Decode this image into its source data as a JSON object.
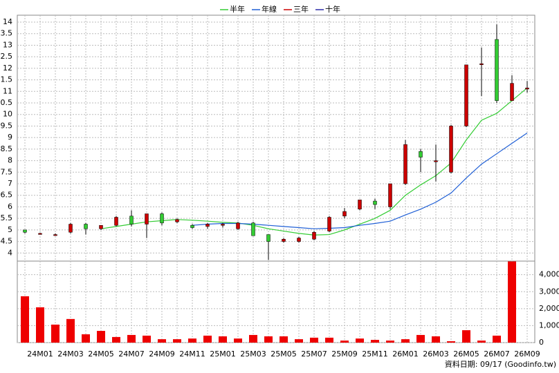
{
  "chart_data": {
    "type": "candlestick",
    "categories": [
      null,
      "24M01",
      null,
      "24M03",
      null,
      "24M05",
      null,
      "24M07",
      null,
      "24M09",
      null,
      "24M11",
      null,
      "25M01",
      null,
      "25M03",
      null,
      "25M05",
      null,
      "25M07",
      null,
      "25M09",
      null,
      "25M11",
      null,
      "26M01",
      null,
      "26M03",
      null,
      "26M05",
      null,
      "26M07",
      null,
      "26M09"
    ],
    "open": [
      5.0,
      4.85,
      4.8,
      4.9,
      5.25,
      5.05,
      5.2,
      5.6,
      5.25,
      5.7,
      5.35,
      5.2,
      5.15,
      5.2,
      5.05,
      5.3,
      4.8,
      4.5,
      4.5,
      4.6,
      4.95,
      5.6,
      5.9,
      6.25,
      6.0,
      7.0,
      8.4,
      7.95,
      7.5,
      9.5,
      12.2,
      13.25,
      10.6,
      11.1
    ],
    "high": [
      5.0,
      4.88,
      4.85,
      5.3,
      5.3,
      5.2,
      5.6,
      5.85,
      5.7,
      5.75,
      5.5,
      5.25,
      5.3,
      5.3,
      5.35,
      5.35,
      4.8,
      4.65,
      4.7,
      4.95,
      5.6,
      5.95,
      6.3,
      6.35,
      7.0,
      8.9,
      8.5,
      8.7,
      9.55,
      12.15,
      12.9,
      13.9,
      11.7,
      11.45
    ],
    "low": [
      4.85,
      4.8,
      4.75,
      4.85,
      4.8,
      5.0,
      5.15,
      5.15,
      4.65,
      5.2,
      5.3,
      5.05,
      5.05,
      5.1,
      5.0,
      4.75,
      3.7,
      4.45,
      4.45,
      4.55,
      4.9,
      5.5,
      5.85,
      5.9,
      5.9,
      6.95,
      7.5,
      7.1,
      7.45,
      9.45,
      10.8,
      10.5,
      10.6,
      10.95
    ],
    "close": [
      4.9,
      4.85,
      4.8,
      5.25,
      5.05,
      5.2,
      5.55,
      5.25,
      5.7,
      5.3,
      5.45,
      5.1,
      5.25,
      5.25,
      5.3,
      4.75,
      4.5,
      4.6,
      4.65,
      4.9,
      5.55,
      5.8,
      6.3,
      6.1,
      7.0,
      8.7,
      8.15,
      8.0,
      9.5,
      12.15,
      12.2,
      10.6,
      11.35,
      11.15
    ],
    "up_color": "#cc0000",
    "down_color": "#33cc33",
    "ylim": [
      3.65,
      14.3
    ],
    "yticks": [
      4,
      4.5,
      5,
      5.5,
      6,
      6.5,
      7,
      7.5,
      8,
      8.5,
      9,
      9.5,
      10,
      10.5,
      11,
      11.5,
      12,
      12.5,
      13,
      13.5,
      14
    ],
    "grid": true,
    "series": [
      {
        "name": "半年",
        "color": "#33cc33",
        "values": [
          null,
          null,
          null,
          null,
          null,
          5.05,
          5.15,
          5.25,
          5.35,
          5.4,
          5.45,
          5.42,
          5.38,
          5.33,
          5.3,
          5.2,
          5.05,
          4.95,
          4.85,
          4.78,
          4.8,
          5.0,
          5.25,
          5.5,
          5.85,
          6.5,
          6.95,
          7.35,
          7.9,
          8.9,
          9.75,
          10.05,
          10.6,
          11.15
        ]
      },
      {
        "name": "年線",
        "color": "#1f5fd6",
        "values": [
          null,
          null,
          null,
          null,
          null,
          null,
          null,
          null,
          null,
          null,
          null,
          5.2,
          5.25,
          5.28,
          5.28,
          5.25,
          5.2,
          5.15,
          5.1,
          5.05,
          5.07,
          5.1,
          5.2,
          5.28,
          5.38,
          5.65,
          5.9,
          6.2,
          6.6,
          7.25,
          7.85,
          8.3,
          8.75,
          9.2
        ]
      },
      {
        "name": "三年",
        "color": "#cc0000",
        "values": [
          null,
          null,
          null,
          null,
          null,
          null,
          null,
          null,
          null,
          null,
          null,
          null,
          null,
          null,
          null,
          null,
          null,
          null,
          null,
          null,
          null,
          null,
          null,
          null,
          null,
          null,
          null,
          null,
          null,
          null,
          null,
          null,
          null,
          null
        ]
      },
      {
        "name": "十年",
        "color": "#2a2aa8",
        "values": [
          null,
          null,
          null,
          null,
          null,
          null,
          null,
          null,
          null,
          null,
          null,
          null,
          null,
          null,
          null,
          null,
          null,
          null,
          null,
          null,
          null,
          null,
          null,
          null,
          null,
          null,
          null,
          null,
          null,
          null,
          null,
          null,
          null,
          null
        ]
      }
    ],
    "volume": {
      "color": "#ee0000",
      "values": [
        2730,
        2080,
        1060,
        1390,
        490,
        690,
        330,
        450,
        410,
        200,
        200,
        240,
        410,
        370,
        240,
        450,
        370,
        370,
        200,
        290,
        290,
        120,
        240,
        160,
        120,
        200,
        450,
        370,
        80,
        730,
        120,
        410,
        4780,
        0
      ],
      "ylim": [
        0,
        4800
      ],
      "yticks": [
        0,
        {
          "value": 1000,
          "label": "1,000"
        },
        {
          "value": 2000,
          "label": "2,000"
        },
        {
          "value": 3000,
          "label": "3,000"
        },
        {
          "value": 4000,
          "label": "4,000"
        }
      ]
    },
    "footer": "資料日期: 09/17  (Goodinfo.tw)"
  }
}
